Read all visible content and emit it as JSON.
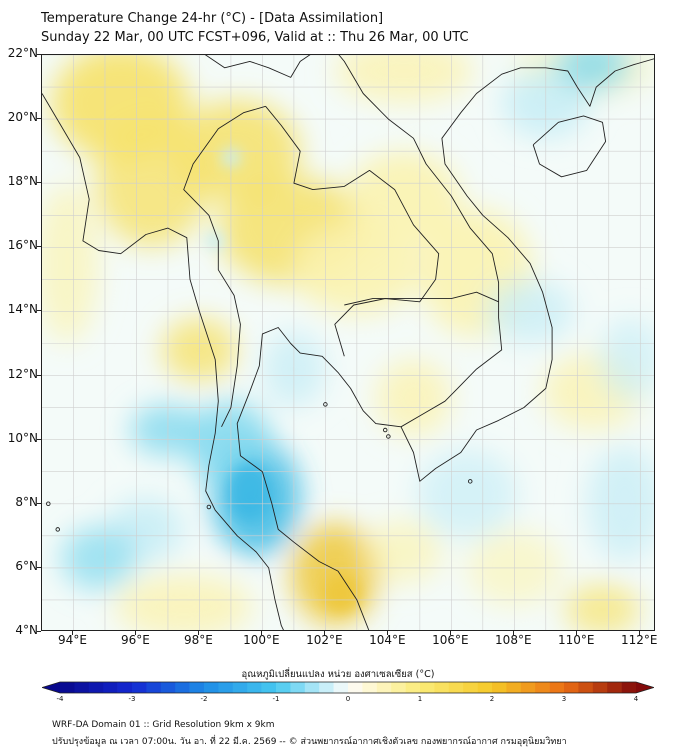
{
  "header": {
    "title_line1": "Temperature Change 24-hr (°C) - [Data Assimilation]",
    "title_line2": "Sunday 22 Mar, 00 UTC FCST+096, Valid at :: Thu 26 Mar, 00 UTC"
  },
  "map": {
    "y_axis_labels": [
      "22°N",
      "20°N",
      "18°N",
      "16°N",
      "14°N",
      "12°N",
      "10°N",
      "8°N",
      "6°N",
      "4°N"
    ],
    "x_axis_labels": [
      "94°E",
      "96°E",
      "98°E",
      "100°E",
      "102°E",
      "104°E",
      "106°E",
      "108°E",
      "110°E",
      "112°E"
    ],
    "lat_range": [
      4,
      22
    ],
    "lon_range": [
      93,
      112.5
    ],
    "colors": {
      "warm_light": "#fbf3b0",
      "warm": "#f6e26a",
      "warm_strong": "#eec83a",
      "cool_light": "#c9eef6",
      "cool": "#7fd8ee",
      "cool_strong": "#3bb8e4",
      "neutral": "#f4fbf9",
      "border": "#222222",
      "grid": "#cfcfcf"
    }
  },
  "colorbar": {
    "label": "อุณหภูมิเปลี่ยนแปลง หน่วย องศาเซลเซียส (°C)",
    "ticks": [
      "-4",
      "-3",
      "-2",
      "-1",
      "0",
      "1",
      "2",
      "3",
      "4"
    ],
    "range": [
      -4,
      4
    ]
  },
  "footer": {
    "line1": "WRF-DA Domain 01 :: Grid Resolution 9km x 9km",
    "line2": "ปรับปรุงข้อมูล ณ เวลา 07:00น. วัน อา. ที่ 22 มี.ค. 2569 -- © ส่วนพยากรณ์อากาศเชิงตัวเลข กองพยากรณ์อากาศ กรมอุตุนิยมวิทยา"
  }
}
